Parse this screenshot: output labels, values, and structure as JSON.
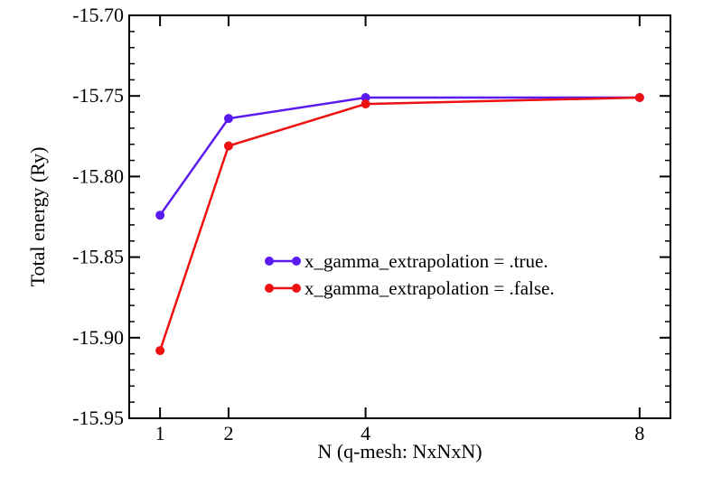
{
  "chart_data": {
    "type": "line",
    "title": "",
    "xlabel": "N (q-mesh: NxNxN)",
    "ylabel": "Total energy (Ry)",
    "x": [
      1,
      2,
      4,
      8
    ],
    "xlim": [
      0.55,
      8.45
    ],
    "ylim": [
      -15.95,
      -15.7
    ],
    "xticks": [
      1,
      2,
      4,
      8
    ],
    "yticks": [
      -15.95,
      -15.9,
      -15.85,
      -15.8,
      -15.75,
      -15.7
    ],
    "yticks_labels": [
      "-15.95",
      "-15.90",
      "-15.85",
      "-15.80",
      "-15.75",
      "-15.70"
    ],
    "grid": false,
    "legend_position": "center-right",
    "series": [
      {
        "name": "x_gamma_extrapolation = .true.",
        "color": "#5a1bf0",
        "values": [
          -15.824,
          -15.764,
          -15.751,
          -15.751
        ]
      },
      {
        "name": "x_gamma_extrapolation = .false.",
        "color": "#ee1111",
        "values": [
          -15.908,
          -15.781,
          -15.755,
          -15.751
        ]
      }
    ]
  }
}
